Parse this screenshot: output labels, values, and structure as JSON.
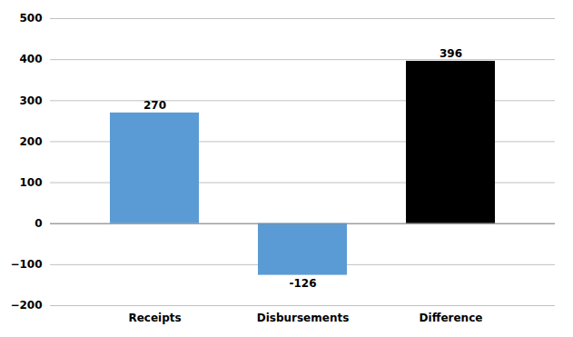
{
  "chart_data": {
    "type": "bar",
    "categories": [
      "Receipts",
      "Disbursements",
      "Difference"
    ],
    "values": [
      270,
      -126,
      396
    ],
    "colors": [
      "#5B9BD5",
      "#5B9BD5",
      "#000000"
    ],
    "ylim": [
      -200,
      500
    ],
    "yticks": [
      -200,
      -100,
      0,
      100,
      200,
      300,
      400,
      500
    ],
    "grid": true,
    "data_labels": true
  }
}
